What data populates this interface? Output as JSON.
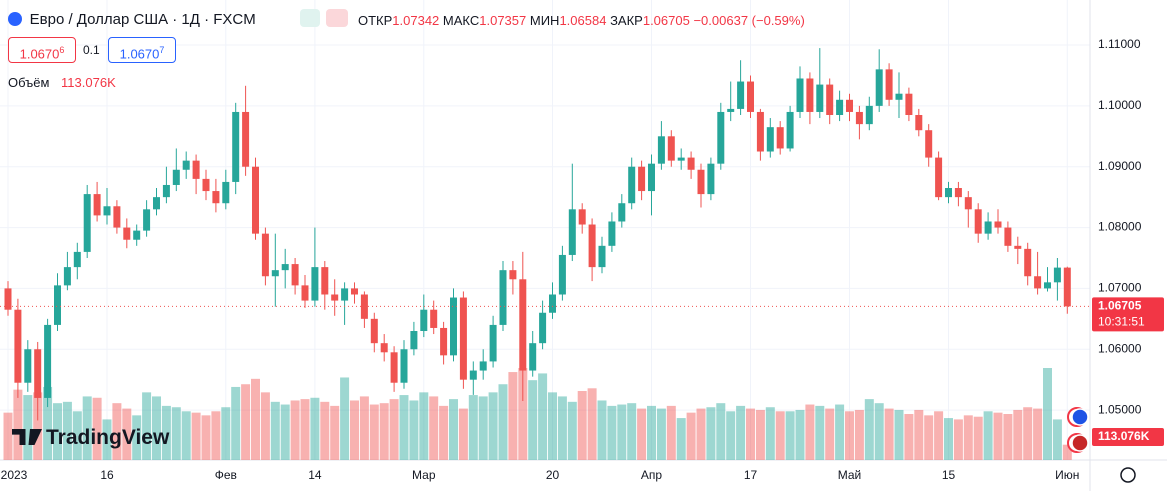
{
  "header": {
    "symbol": "Евро / Доллар США · 1Д · FXCM",
    "open_label": "ОТКР",
    "high_label": "МАКС",
    "low_label": "МИН",
    "close_label": "ЗАКР",
    "change": "−0.00637 (−0.59%)",
    "bid": {
      "main": "1.0670",
      "pip": "6"
    },
    "spread": "0.1",
    "ask": {
      "main": "1.0670",
      "pip": "7"
    },
    "volume_label": "Объём",
    "volume_text": "113.076K",
    "time": "10:31:51",
    "logo": "TradingView"
  },
  "chart_data": {
    "type": "candlestick",
    "up_color": "#26a69a",
    "down_color": "#ef5350",
    "grid": true,
    "ylim": [
      1.0418,
      1.1174
    ],
    "yticks": [
      {
        "value": 1.05,
        "label": "1.05000"
      },
      {
        "value": 1.06,
        "label": "1.06000"
      },
      {
        "value": 1.07,
        "label": "1.07000"
      },
      {
        "value": 1.08,
        "label": "1.08000"
      },
      {
        "value": 1.09,
        "label": "1.09000"
      },
      {
        "value": 1.1,
        "label": "1.10000"
      },
      {
        "value": 1.11,
        "label": "1.11000"
      }
    ],
    "categories": [
      "2023",
      null,
      null,
      null,
      null,
      null,
      null,
      null,
      null,
      null,
      "16",
      null,
      null,
      null,
      null,
      null,
      null,
      null,
      null,
      null,
      null,
      null,
      "Фев",
      null,
      null,
      null,
      null,
      null,
      null,
      null,
      null,
      "14",
      null,
      null,
      null,
      null,
      null,
      null,
      null,
      null,
      null,
      null,
      "Мар",
      null,
      null,
      null,
      null,
      null,
      null,
      null,
      null,
      null,
      null,
      null,
      null,
      "20",
      null,
      null,
      null,
      null,
      null,
      null,
      null,
      null,
      null,
      "Апр",
      null,
      null,
      null,
      null,
      null,
      null,
      null,
      null,
      null,
      "17",
      null,
      null,
      null,
      null,
      null,
      null,
      null,
      null,
      null,
      "Май",
      null,
      null,
      null,
      null,
      null,
      null,
      null,
      null,
      null,
      "15",
      null,
      null,
      null,
      null,
      null,
      null,
      null,
      null,
      null,
      null,
      null,
      "Июн"
    ],
    "open": [
      1.07,
      1.0665,
      1.0545,
      1.06,
      1.052,
      1.064,
      1.0705,
      1.0735,
      1.076,
      1.0855,
      1.082,
      1.0835,
      1.08,
      1.078,
      1.0795,
      1.083,
      1.085,
      1.087,
      1.0895,
      1.091,
      1.088,
      1.086,
      1.084,
      1.0875,
      1.099,
      1.09,
      1.079,
      1.072,
      1.073,
      1.074,
      1.0705,
      1.068,
      1.0735,
      1.069,
      1.068,
      1.07,
      1.069,
      1.065,
      1.061,
      1.0595,
      1.0545,
      1.06,
      1.063,
      1.0665,
      1.0635,
      1.059,
      1.0685,
      1.055,
      1.0565,
      1.058,
      1.064,
      1.073,
      1.0715,
      1.0565,
      1.061,
      1.066,
      1.069,
      1.0755,
      1.083,
      1.0805,
      1.0735,
      1.077,
      1.081,
      1.084,
      1.09,
      1.086,
      1.0905,
      1.095,
      1.091,
      1.0915,
      1.0895,
      1.0855,
      1.0905,
      1.099,
      1.0995,
      1.104,
      1.099,
      1.0925,
      1.0965,
      1.093,
      1.099,
      1.1045,
      1.099,
      1.1035,
      1.0985,
      1.101,
      1.099,
      1.097,
      1.1,
      1.106,
      1.101,
      1.102,
      1.0985,
      1.096,
      1.0915,
      1.085,
      1.0865,
      1.085,
      1.083,
      1.079,
      1.081,
      1.08,
      1.077,
      1.0765,
      1.072,
      1.07,
      1.071,
      1.07342
    ],
    "high": [
      1.0712,
      1.0683,
      1.0615,
      1.0612,
      1.065,
      1.0725,
      1.076,
      1.0775,
      1.087,
      1.0875,
      1.0865,
      1.0845,
      1.0815,
      1.0805,
      1.0845,
      1.0865,
      1.09,
      1.093,
      1.0925,
      1.092,
      1.0895,
      1.088,
      1.0895,
      1.1005,
      1.1033,
      1.0915,
      1.08,
      1.079,
      1.0765,
      1.075,
      1.0722,
      1.08,
      1.0745,
      1.0715,
      1.071,
      1.071,
      1.0695,
      1.066,
      1.0625,
      1.0605,
      1.0615,
      1.0645,
      1.069,
      1.068,
      1.0645,
      1.07,
      1.0695,
      1.058,
      1.06,
      1.0655,
      1.0745,
      1.0745,
      1.076,
      1.063,
      1.068,
      1.071,
      1.077,
      1.0905,
      1.084,
      1.0815,
      1.0785,
      1.0825,
      1.0855,
      1.0915,
      1.091,
      1.092,
      1.0975,
      1.096,
      1.093,
      1.0925,
      1.0905,
      1.0915,
      1.1005,
      1.104,
      1.1075,
      1.105,
      1.0995,
      1.098,
      1.0975,
      1.1,
      1.1065,
      1.1055,
      1.1095,
      1.1045,
      1.1025,
      1.102,
      1.1,
      1.1015,
      1.1093,
      1.107,
      1.1055,
      1.103,
      1.0995,
      1.097,
      1.0925,
      1.0875,
      1.0875,
      1.086,
      1.084,
      1.0825,
      1.083,
      1.081,
      1.0785,
      1.0775,
      1.076,
      1.0735,
      1.075,
      1.07357
    ],
    "low": [
      1.0655,
      1.052,
      1.053,
      1.0483,
      1.0505,
      1.063,
      1.0697,
      1.0715,
      1.075,
      1.081,
      1.0805,
      1.079,
      1.0766,
      1.077,
      1.0785,
      1.082,
      1.084,
      1.086,
      1.088,
      1.0855,
      1.0845,
      1.0825,
      1.083,
      1.0855,
      1.0885,
      1.078,
      1.0705,
      1.067,
      1.07,
      1.069,
      1.0668,
      1.067,
      1.0665,
      1.0655,
      1.064,
      1.0675,
      1.0635,
      1.0595,
      1.058,
      1.053,
      1.0535,
      1.059,
      1.062,
      1.0625,
      1.0575,
      1.058,
      1.0535,
      1.0525,
      1.055,
      1.057,
      1.063,
      1.069,
      1.0515,
      1.0555,
      1.06,
      1.065,
      1.068,
      1.0745,
      1.079,
      1.0712,
      1.0725,
      1.076,
      1.08,
      1.083,
      1.0845,
      1.082,
      1.0895,
      1.09,
      1.0895,
      1.088,
      1.0833,
      1.0845,
      1.0895,
      1.0975,
      1.0985,
      1.098,
      1.091,
      1.0915,
      1.092,
      1.0925,
      1.098,
      1.097,
      1.098,
      1.097,
      1.0975,
      1.0975,
      1.0945,
      1.096,
      1.099,
      1.1,
      1.098,
      1.0975,
      1.095,
      1.09,
      1.0845,
      1.084,
      1.0835,
      1.08,
      1.0775,
      1.078,
      1.079,
      1.076,
      1.074,
      1.0705,
      1.069,
      1.0695,
      1.068,
      1.06584
    ],
    "close": [
      1.0665,
      1.0545,
      1.06,
      1.052,
      1.064,
      1.0705,
      1.0735,
      1.076,
      1.0855,
      1.082,
      1.0835,
      1.08,
      1.078,
      1.0795,
      1.083,
      1.085,
      1.087,
      1.0895,
      1.091,
      1.088,
      1.086,
      1.084,
      1.0875,
      1.099,
      1.09,
      1.079,
      1.072,
      1.073,
      1.074,
      1.0705,
      1.068,
      1.0735,
      1.069,
      1.068,
      1.07,
      1.069,
      1.065,
      1.061,
      1.0595,
      1.0545,
      1.06,
      1.063,
      1.0665,
      1.0635,
      1.059,
      1.0685,
      1.055,
      1.0565,
      1.058,
      1.064,
      1.073,
      1.0715,
      1.0565,
      1.061,
      1.066,
      1.069,
      1.0755,
      1.083,
      1.0805,
      1.0735,
      1.077,
      1.081,
      1.084,
      1.09,
      1.086,
      1.0905,
      1.095,
      1.091,
      1.0915,
      1.0895,
      1.0855,
      1.0905,
      1.099,
      1.0995,
      1.104,
      1.099,
      1.0925,
      1.0965,
      1.093,
      1.099,
      1.1045,
      1.099,
      1.1035,
      1.0985,
      1.101,
      1.099,
      1.097,
      1.1,
      1.106,
      1.101,
      1.102,
      1.0985,
      1.096,
      1.0915,
      1.085,
      1.0865,
      1.085,
      1.083,
      1.079,
      1.081,
      1.08,
      1.077,
      1.0765,
      1.072,
      1.07,
      1.071,
      1.07342,
      1.06705
    ],
    "volume": [
      350,
      520,
      480,
      500,
      540,
      420,
      430,
      360,
      470,
      460,
      300,
      420,
      380,
      330,
      500,
      470,
      400,
      390,
      360,
      350,
      330,
      360,
      390,
      540,
      560,
      600,
      500,
      430,
      410,
      440,
      450,
      460,
      430,
      400,
      610,
      440,
      470,
      410,
      420,
      450,
      480,
      440,
      500,
      470,
      400,
      450,
      380,
      480,
      470,
      500,
      560,
      650,
      680,
      590,
      640,
      500,
      470,
      430,
      510,
      530,
      440,
      400,
      410,
      420,
      380,
      400,
      380,
      400,
      310,
      350,
      380,
      390,
      420,
      360,
      400,
      380,
      370,
      390,
      360,
      360,
      370,
      410,
      400,
      380,
      410,
      360,
      370,
      450,
      420,
      380,
      370,
      340,
      370,
      330,
      360,
      310,
      300,
      330,
      320,
      360,
      350,
      340,
      370,
      390,
      380,
      680,
      300,
      113.076
    ]
  }
}
